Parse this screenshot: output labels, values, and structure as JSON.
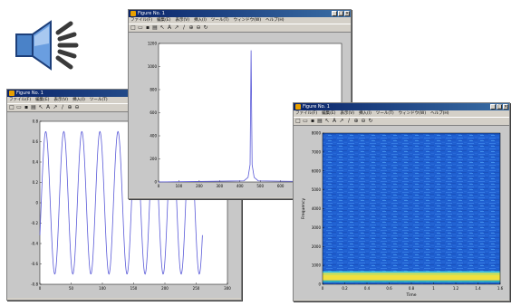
{
  "window_title": "Figure No. 1",
  "menu": [
    "ファイル(F)",
    "編集(E)",
    "表示(V)",
    "挿入(I)",
    "ツール(T)",
    "ウィンドウ(W)",
    "ヘルプ(H)"
  ],
  "title_buttons": [
    "_",
    "□",
    "×"
  ],
  "toolbar_icons": [
    "□",
    "▭",
    "▪",
    "▤",
    "↖",
    "A",
    "↗",
    "∕",
    "⊕",
    "⊖",
    "↻"
  ],
  "speaker_icon": "speaker-icon",
  "colors": {
    "line": "#5a5ad8",
    "titlebar": "#0a246a",
    "spectrogram_bg": "#1f5fd0"
  },
  "chart_data": [
    {
      "type": "line",
      "window": "spectrum",
      "x": [
        0,
        420,
        440,
        450,
        455,
        460,
        470,
        490,
        900
      ],
      "y": [
        0,
        10,
        40,
        150,
        1140,
        150,
        40,
        10,
        0
      ],
      "xlim": [
        0,
        900
      ],
      "ylim": [
        0,
        1200
      ],
      "xticks": [
        "0",
        "100",
        "200",
        "300",
        "400",
        "500",
        "600",
        "700",
        "800"
      ],
      "yticks": [
        "0",
        "200",
        "400",
        "600",
        "800",
        "1000",
        "1200"
      ]
    },
    {
      "type": "line",
      "window": "waveform",
      "cycles": 9,
      "amplitude": 0.7,
      "xlim": [
        0,
        300
      ],
      "ylim": [
        -0.8,
        0.8
      ],
      "xticks": [
        "0",
        "50",
        "100",
        "150",
        "200",
        "250",
        "300"
      ],
      "yticks": [
        "0.8",
        "0.6",
        "0.4",
        "0.2",
        "0",
        "-0.2",
        "-0.4",
        "-0.6",
        "-0.8"
      ]
    },
    {
      "type": "heatmap",
      "window": "spectrogram",
      "xlabel": "Time",
      "ylabel": "Frequency",
      "xlim": [
        0,
        1.6
      ],
      "ylim": [
        0,
        8000
      ],
      "band": [
        200,
        600
      ],
      "xticks": [
        "0",
        "0.2",
        "0.4",
        "0.6",
        "0.8",
        "1",
        "1.2",
        "1.4",
        "1.6"
      ],
      "yticks": [
        "8000",
        "7000",
        "6000",
        "5000",
        "4000",
        "3000",
        "2000",
        "1000",
        "0"
      ]
    }
  ]
}
